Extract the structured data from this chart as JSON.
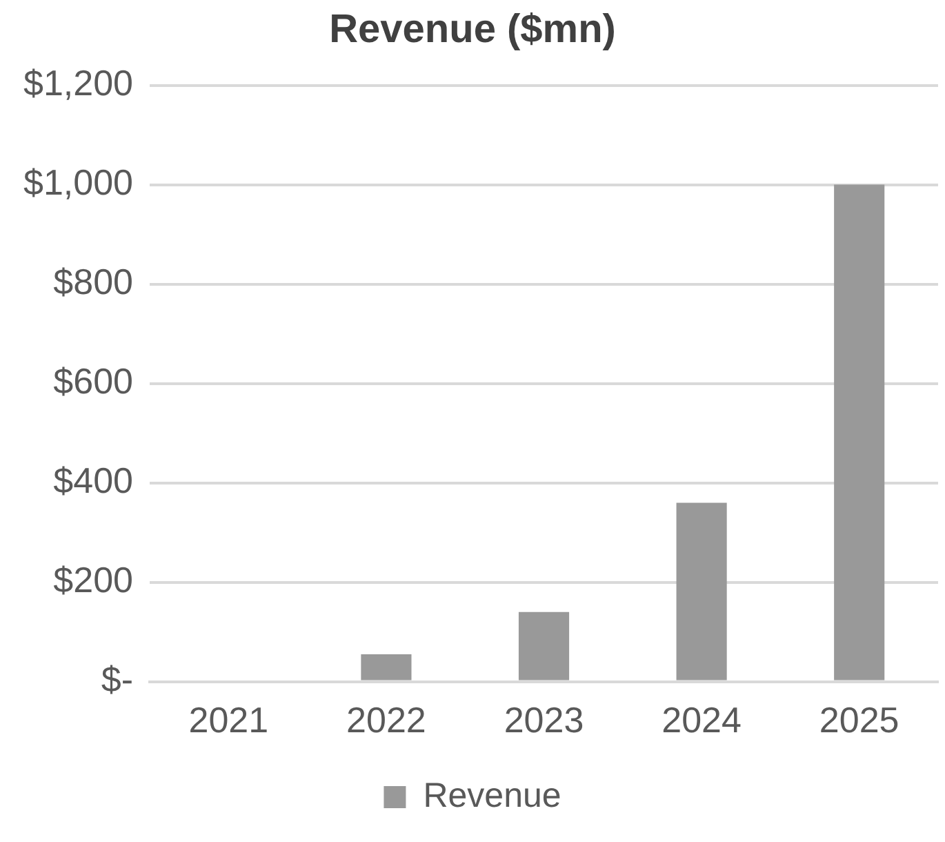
{
  "chart_data": {
    "type": "bar",
    "title": "Revenue ($mn)",
    "categories": [
      "2021",
      "2022",
      "2023",
      "2024",
      "2025"
    ],
    "series": [
      {
        "name": "Revenue",
        "color": "#999999",
        "values": [
          0,
          55,
          140,
          360,
          1000
        ]
      }
    ],
    "ylim": [
      0,
      1200
    ],
    "yticks": [
      {
        "value": 0,
        "label": "$-"
      },
      {
        "value": 200,
        "label": "$200"
      },
      {
        "value": 400,
        "label": "$400"
      },
      {
        "value": 600,
        "label": "$600"
      },
      {
        "value": 800,
        "label": "$800"
      },
      {
        "value": 1000,
        "label": "$1,000"
      },
      {
        "value": 1200,
        "label": "$1,200"
      }
    ],
    "grid": "y",
    "legend": "bottom"
  }
}
